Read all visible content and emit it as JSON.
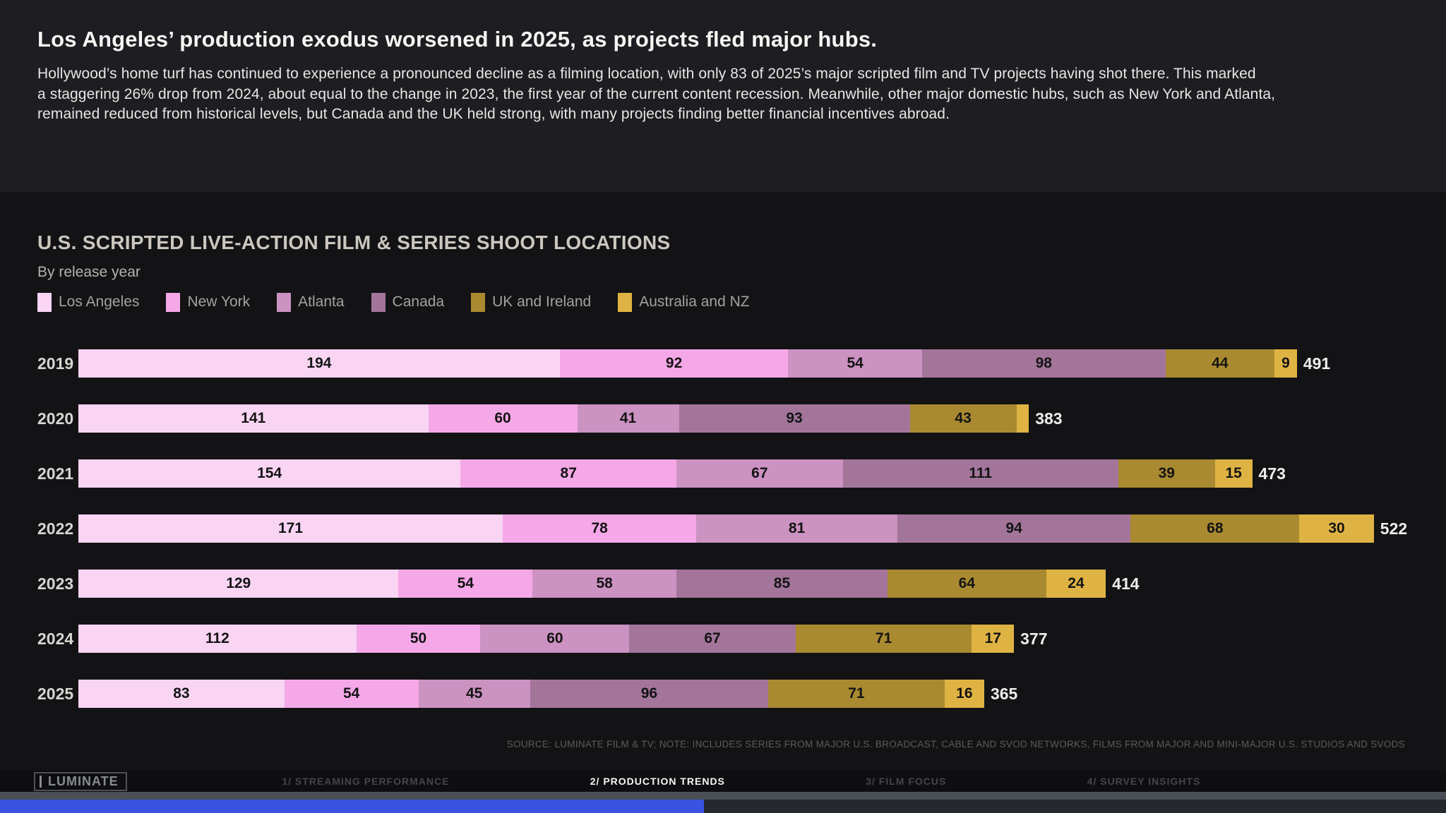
{
  "colors": {
    "header_bg": "#1d1d22",
    "chart_bg": "#131316",
    "footer_bg": "#0e0e11",
    "accent_blue": "#3a53e0",
    "strip_gray": "#4a4e55",
    "bottom_bar_bg": "#25282d"
  },
  "header": {
    "headline": "Los Angeles’ production exodus worsened in 2025, as projects fled major hubs.",
    "body": "Hollywood’s home turf has continued to experience a pronounced decline as a filming location, with only 83 of 2025’s major scripted film and TV projects having shot there. This marked\na staggering 26% drop from 2024, about equal to the change in 2023, the first year of the current content recession. Meanwhile, other major domestic hubs, such as New York and Atlanta,\nremained reduced from historical levels, but Canada and the UK held strong, with many projects finding better financial incentives abroad."
  },
  "chart": {
    "title": "U.S. SCRIPTED LIVE-ACTION FILM & SERIES SHOOT LOCATIONS",
    "subtitle": "By release year",
    "source": "SOURCE: LUMINATE FILM & TV; NOTE: INCLUDES SERIES FROM MAJOR U.S. BROADCAST, CABLE AND SVOD NETWORKS, FILMS FROM MAJOR AND MINI-MAJOR U.S. STUDIOS AND SVODS"
  },
  "chart_data": {
    "type": "bar",
    "stacked": true,
    "orientation": "horizontal",
    "categories": [
      "2019",
      "2020",
      "2021",
      "2022",
      "2023",
      "2024",
      "2025"
    ],
    "series": [
      {
        "name": "Los Angeles",
        "color": "#f9d5f3",
        "values": [
          194,
          141,
          154,
          171,
          129,
          112,
          83
        ]
      },
      {
        "name": "New York",
        "color": "#f5a8e8",
        "values": [
          92,
          60,
          87,
          78,
          54,
          50,
          54
        ]
      },
      {
        "name": "Atlanta",
        "color": "#cc92c2",
        "values": [
          54,
          41,
          67,
          81,
          58,
          60,
          45
        ]
      },
      {
        "name": "Canada",
        "color": "#a3759b",
        "values": [
          98,
          93,
          111,
          94,
          85,
          67,
          96
        ]
      },
      {
        "name": "UK and Ireland",
        "color": "#a98a30",
        "values": [
          44,
          43,
          39,
          68,
          64,
          71,
          71
        ]
      },
      {
        "name": "Australia and NZ",
        "color": "#dfb343",
        "values": [
          9,
          5,
          15,
          30,
          24,
          17,
          16
        ]
      }
    ],
    "totals": [
      491,
      383,
      473,
      522,
      414,
      377,
      365
    ],
    "label_min_value": 9,
    "legend_position": "top",
    "grid": false
  },
  "footer": {
    "logo": "LUMINATE",
    "nav": [
      {
        "label": "1/ STREAMING PERFORMANCE",
        "active": false
      },
      {
        "label": "2/ PRODUCTION TRENDS",
        "active": true
      },
      {
        "label": "3/ FILM FOCUS",
        "active": false
      },
      {
        "label": "4/ SURVEY INSIGHTS",
        "active": false
      }
    ],
    "progress_percent": 48.7
  }
}
